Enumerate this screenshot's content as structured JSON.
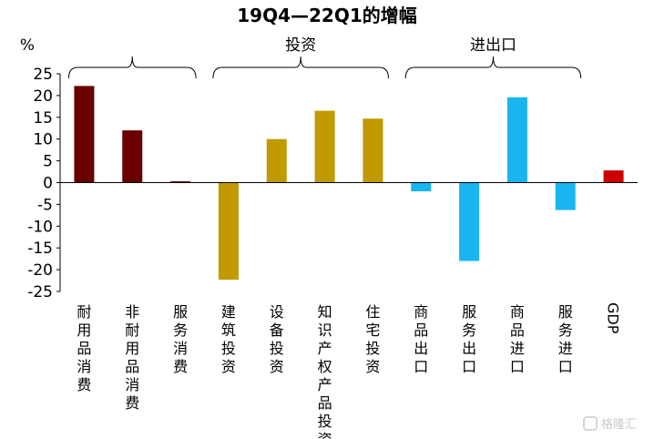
{
  "chart_data": {
    "type": "bar",
    "title": "19Q4—22Q1的增幅",
    "ylabel": "%",
    "ylim": [
      -25,
      25
    ],
    "yticks": [
      25,
      20,
      15,
      10,
      5,
      0,
      -5,
      -10,
      -15,
      -20,
      -25
    ],
    "categories": [
      "耐用品消费",
      "非耐用品消费",
      "服务消费",
      "建筑投资",
      "设备投资",
      "知识产权产品投资",
      "住宅投资",
      "商品出口",
      "服务出口",
      "商品进口",
      "服务进口",
      "GDP"
    ],
    "values": [
      22.2,
      12.0,
      0.3,
      -22.3,
      10.0,
      16.5,
      14.7,
      -2.0,
      -18.0,
      19.6,
      -6.3,
      2.8
    ],
    "colors": [
      "#6b0000",
      "#6b0000",
      "#6b0000",
      "#c09a00",
      "#c09a00",
      "#c09a00",
      "#c09a00",
      "#19b5f0",
      "#19b5f0",
      "#19b5f0",
      "#19b5f0",
      "#cc0000"
    ],
    "groups": [
      {
        "label": "",
        "start": 0,
        "end": 2
      },
      {
        "label": "投资",
        "start": 3,
        "end": 6
      },
      {
        "label": "进出口",
        "start": 7,
        "end": 10
      }
    ],
    "grid": false
  },
  "watermark": "格隆汇",
  "watermark_icon": "logo-icon"
}
